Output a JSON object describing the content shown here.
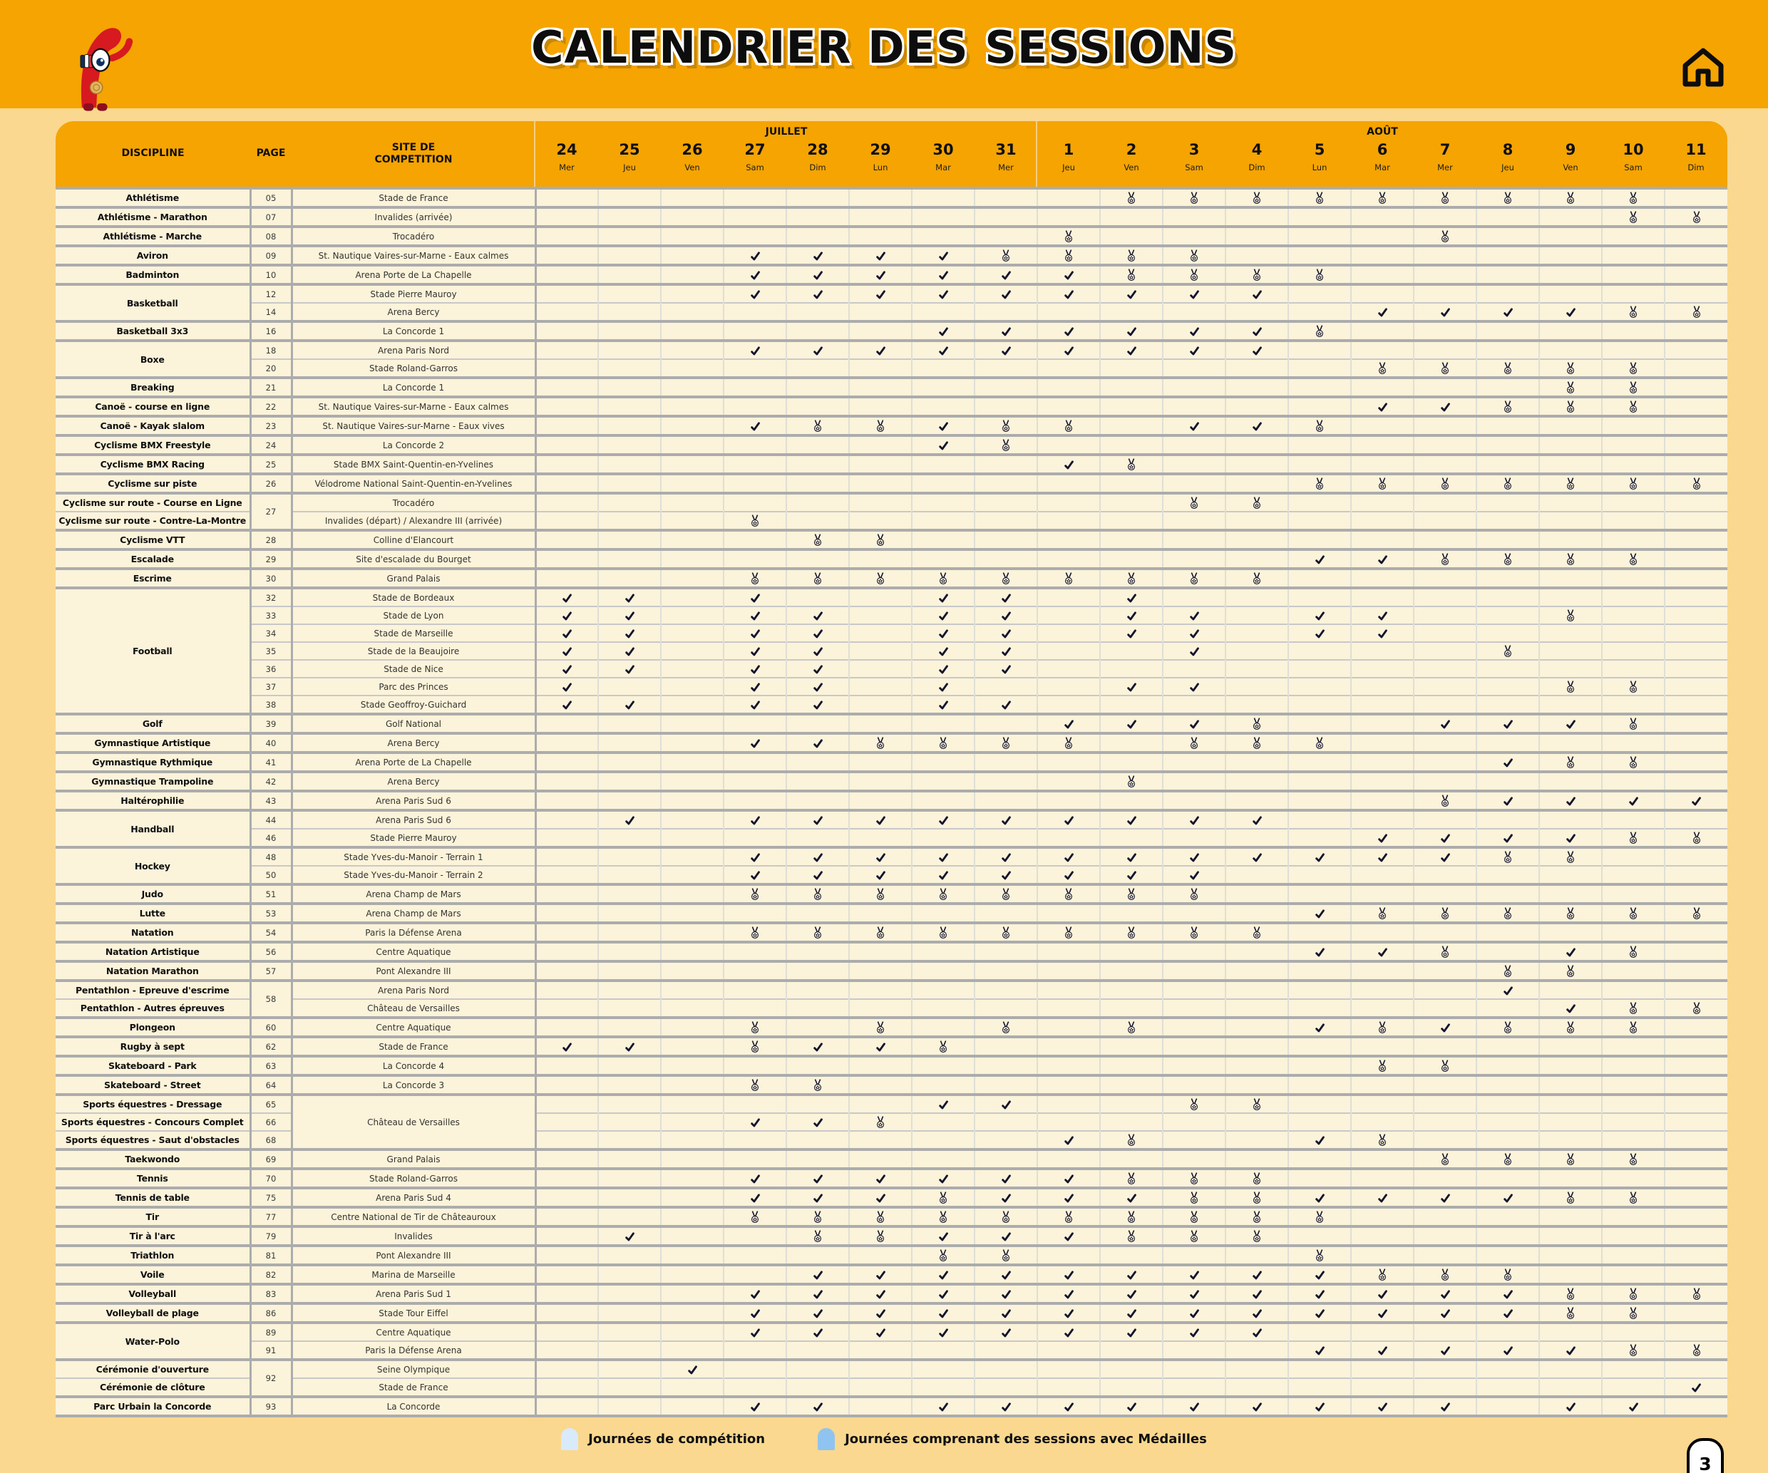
{
  "title": "CALENDRIER DES SESSIONS",
  "page_number": "3",
  "legend": {
    "competition": "Journées de compétition",
    "medal": "Journées comprenant des sessions avec Médailles"
  },
  "header": {
    "discipline": "DISCIPLINE",
    "page": "PAGE",
    "site_line1": "SITE DE",
    "site_line2": "COMPETITION",
    "months": [
      {
        "label": "JUILLET",
        "span": 8
      },
      {
        "label": "AOÛT",
        "span": 11
      }
    ]
  },
  "columns": [
    {
      "day": "24",
      "dow": "Mer"
    },
    {
      "day": "25",
      "dow": "Jeu"
    },
    {
      "day": "26",
      "dow": "Ven"
    },
    {
      "day": "27",
      "dow": "Sam"
    },
    {
      "day": "28",
      "dow": "Dim"
    },
    {
      "day": "29",
      "dow": "Lun"
    },
    {
      "day": "30",
      "dow": "Mar"
    },
    {
      "day": "31",
      "dow": "Mer"
    },
    {
      "day": "1",
      "dow": "Jeu"
    },
    {
      "day": "2",
      "dow": "Ven"
    },
    {
      "day": "3",
      "dow": "Sam"
    },
    {
      "day": "4",
      "dow": "Dim"
    },
    {
      "day": "5",
      "dow": "Lun"
    },
    {
      "day": "6",
      "dow": "Mar"
    },
    {
      "day": "7",
      "dow": "Mer"
    },
    {
      "day": "8",
      "dow": "Jeu"
    },
    {
      "day": "9",
      "dow": "Ven"
    },
    {
      "day": "10",
      "dow": "Sam"
    },
    {
      "day": "11",
      "dow": "Dim"
    }
  ],
  "mark_meaning": {
    ".": "empty",
    "C": "competition-day",
    "M": "medal-day",
    "B": "competition-check-on-medal-day"
  },
  "rows": [
    {
      "sep": "G",
      "disc": {
        "t": "Athlétisme",
        "s": 1
      },
      "page": {
        "t": "05",
        "s": 1
      },
      "site": {
        "t": "Stade de France",
        "s": 1
      },
      "marks": ".........MMMMMMMMM."
    },
    {
      "sep": "G",
      "disc": {
        "t": "Athlétisme - Marathon",
        "s": 1
      },
      "page": {
        "t": "07",
        "s": 1
      },
      "site": {
        "t": "Invalides (arrivée)",
        "s": 1
      },
      "marks": ".................MM"
    },
    {
      "sep": "G",
      "disc": {
        "t": "Athlétisme - Marche",
        "s": 1
      },
      "page": {
        "t": "08",
        "s": 1
      },
      "site": {
        "t": "Trocadéro",
        "s": 1
      },
      "marks": "........M.....M...."
    },
    {
      "sep": "G",
      "disc": {
        "t": "Aviron",
        "s": 1
      },
      "page": {
        "t": "09",
        "s": 1
      },
      "site": {
        "t": "St. Nautique Vaires-sur-Marne - Eaux calmes",
        "s": 1
      },
      "marks": "...CCCCMMMM........"
    },
    {
      "sep": "G",
      "disc": {
        "t": "Badminton",
        "s": 1
      },
      "page": {
        "t": "10",
        "s": 1
      },
      "site": {
        "t": "Arena Porte de La Chapelle",
        "s": 1
      },
      "marks": "...CCCCCCMMMM......"
    },
    {
      "sep": "G",
      "disc": {
        "t": "Basketball",
        "s": 2
      },
      "page": {
        "t": "12",
        "s": 1
      },
      "site": {
        "t": "Stade Pierre Mauroy",
        "s": 1
      },
      "marks": "...CCCCCCCCC......."
    },
    {
      "sep": "S",
      "page": {
        "t": "14",
        "s": 1
      },
      "site": {
        "t": "Arena Bercy",
        "s": 1
      },
      "marks": ".............CCCCMM"
    },
    {
      "sep": "G",
      "disc": {
        "t": "Basketball 3x3",
        "s": 1
      },
      "page": {
        "t": "16",
        "s": 1
      },
      "site": {
        "t": "La Concorde 1",
        "s": 1
      },
      "marks": "......CCCCCCM......"
    },
    {
      "sep": "G",
      "disc": {
        "t": "Boxe",
        "s": 2
      },
      "page": {
        "t": "18",
        "s": 1
      },
      "site": {
        "t": "Arena Paris Nord",
        "s": 1
      },
      "marks": "...CCCCCCCCC......."
    },
    {
      "sep": "S",
      "page": {
        "t": "20",
        "s": 1
      },
      "site": {
        "t": "Stade Roland-Garros",
        "s": 1
      },
      "marks": ".............MMMMM."
    },
    {
      "sep": "G",
      "disc": {
        "t": "Breaking",
        "s": 1
      },
      "page": {
        "t": "21",
        "s": 1
      },
      "site": {
        "t": "La Concorde 1",
        "s": 1
      },
      "marks": "................MM."
    },
    {
      "sep": "G",
      "disc": {
        "t": "Canoë - course en ligne",
        "s": 1
      },
      "page": {
        "t": "22",
        "s": 1
      },
      "site": {
        "t": "St. Nautique Vaires-sur-Marne - Eaux calmes",
        "s": 1
      },
      "marks": ".............CCMMM."
    },
    {
      "sep": "G",
      "disc": {
        "t": "Canoë - Kayak slalom",
        "s": 1
      },
      "page": {
        "t": "23",
        "s": 1
      },
      "site": {
        "t": "St. Nautique Vaires-sur-Marne - Eaux vives",
        "s": 1
      },
      "marks": "...CMMCMM.CCM......"
    },
    {
      "sep": "G",
      "disc": {
        "t": "Cyclisme BMX Freestyle",
        "s": 1
      },
      "page": {
        "t": "24",
        "s": 1
      },
      "site": {
        "t": "La Concorde 2",
        "s": 1
      },
      "marks": "......CM..........."
    },
    {
      "sep": "G",
      "disc": {
        "t": "Cyclisme BMX Racing",
        "s": 1
      },
      "page": {
        "t": "25",
        "s": 1
      },
      "site": {
        "t": "Stade BMX Saint-Quentin-en-Yvelines",
        "s": 1
      },
      "marks": "........CM........."
    },
    {
      "sep": "G",
      "disc": {
        "t": "Cyclisme sur piste",
        "s": 1
      },
      "page": {
        "t": "26",
        "s": 1
      },
      "site": {
        "t": "Vélodrome National Saint-Quentin-en-Yvelines",
        "s": 1
      },
      "marks": "............MMMMMMM"
    },
    {
      "sep": "G",
      "disc": {
        "t": "Cyclisme sur route - Course en Ligne",
        "s": 1
      },
      "page": {
        "t": "27",
        "s": 2
      },
      "site": {
        "t": "Trocadéro",
        "s": 1
      },
      "marks": "..........MM......."
    },
    {
      "sep": "S",
      "disc": {
        "t": "Cyclisme sur route - Contre-La-Montre",
        "s": 1
      },
      "site": {
        "t": "Invalides (départ) / Alexandre III (arrivée)",
        "s": 1
      },
      "marks": "...M..............."
    },
    {
      "sep": "G",
      "disc": {
        "t": "Cyclisme VTT",
        "s": 1
      },
      "page": {
        "t": "28",
        "s": 1
      },
      "site": {
        "t": "Colline d'Elancourt",
        "s": 1
      },
      "marks": "....MM............."
    },
    {
      "sep": "G",
      "disc": {
        "t": "Escalade",
        "s": 1
      },
      "page": {
        "t": "29",
        "s": 1
      },
      "site": {
        "t": "Site d'escalade du Bourget",
        "s": 1
      },
      "marks": "............CCMMMM."
    },
    {
      "sep": "G",
      "disc": {
        "t": "Escrime",
        "s": 1
      },
      "page": {
        "t": "30",
        "s": 1
      },
      "site": {
        "t": "Grand Palais",
        "s": 1
      },
      "marks": "...MMMMMMMMM......."
    },
    {
      "sep": "G",
      "disc": {
        "t": "Football",
        "s": 7
      },
      "page": {
        "t": "32",
        "s": 1
      },
      "site": {
        "t": "Stade de Bordeaux",
        "s": 1
      },
      "marks": "CC.C..CC.C........."
    },
    {
      "sep": "S",
      "page": {
        "t": "33",
        "s": 1
      },
      "site": {
        "t": "Stade de Lyon",
        "s": 1
      },
      "marks": "CC.CC.CC.CC.CC..M.."
    },
    {
      "sep": "S",
      "page": {
        "t": "34",
        "s": 1
      },
      "site": {
        "t": "Stade de Marseille",
        "s": 1
      },
      "marks": "CC.CC.CC.CC.CC....."
    },
    {
      "sep": "S",
      "page": {
        "t": "35",
        "s": 1
      },
      "site": {
        "t": "Stade de la Beaujoire",
        "s": 1
      },
      "marks": "CC.CC.CC..C....M..."
    },
    {
      "sep": "S",
      "page": {
        "t": "36",
        "s": 1
      },
      "site": {
        "t": "Stade de Nice",
        "s": 1
      },
      "marks": "CC.CC.CC..........."
    },
    {
      "sep": "S",
      "page": {
        "t": "37",
        "s": 1
      },
      "site": {
        "t": "Parc des Princes",
        "s": 1
      },
      "marks": "C..CC.C..CC.....MM."
    },
    {
      "sep": "S",
      "page": {
        "t": "38",
        "s": 1
      },
      "site": {
        "t": "Stade Geoffroy-Guichard",
        "s": 1
      },
      "marks": "CC.CC.CC..........."
    },
    {
      "sep": "G",
      "disc": {
        "t": "Golf",
        "s": 1
      },
      "page": {
        "t": "39",
        "s": 1
      },
      "site": {
        "t": "Golf National",
        "s": 1
      },
      "marks": "........CCCM..CCCM."
    },
    {
      "sep": "G",
      "disc": {
        "t": "Gymnastique Artistique",
        "s": 1
      },
      "page": {
        "t": "40",
        "s": 1
      },
      "site": {
        "t": "Arena Bercy",
        "s": 1
      },
      "marks": "...CCMMMM.MMM......"
    },
    {
      "sep": "G",
      "disc": {
        "t": "Gymnastique Rythmique",
        "s": 1
      },
      "page": {
        "t": "41",
        "s": 1
      },
      "site": {
        "t": "Arena Porte de La Chapelle",
        "s": 1
      },
      "marks": "...............CMM."
    },
    {
      "sep": "G",
      "disc": {
        "t": "Gymnastique Trampoline",
        "s": 1
      },
      "page": {
        "t": "42",
        "s": 1
      },
      "site": {
        "t": "Arena Bercy",
        "s": 1
      },
      "marks": ".........M........."
    },
    {
      "sep": "G",
      "disc": {
        "t": "Haltérophilie",
        "s": 1
      },
      "page": {
        "t": "43",
        "s": 1
      },
      "site": {
        "t": "Arena Paris Sud 6",
        "s": 1
      },
      "marks": "..............MBBBB"
    },
    {
      "sep": "G",
      "disc": {
        "t": "Handball",
        "s": 2
      },
      "page": {
        "t": "44",
        "s": 1
      },
      "site": {
        "t": "Arena Paris Sud 6",
        "s": 1
      },
      "marks": ".C.CCCCCCCCC......."
    },
    {
      "sep": "S",
      "page": {
        "t": "46",
        "s": 1
      },
      "site": {
        "t": "Stade Pierre Mauroy",
        "s": 1
      },
      "marks": ".............CCCCMM"
    },
    {
      "sep": "G",
      "disc": {
        "t": "Hockey",
        "s": 2
      },
      "page": {
        "t": "48",
        "s": 1
      },
      "site": {
        "t": "Stade Yves-du-Manoir - Terrain 1",
        "s": 1
      },
      "marks": "...CCCCCCCCCCCCMM.."
    },
    {
      "sep": "S",
      "page": {
        "t": "50",
        "s": 1
      },
      "site": {
        "t": "Stade Yves-du-Manoir - Terrain 2",
        "s": 1
      },
      "marks": "...CCCCCCCC........"
    },
    {
      "sep": "G",
      "disc": {
        "t": "Judo",
        "s": 1
      },
      "page": {
        "t": "51",
        "s": 1
      },
      "site": {
        "t": "Arena Champ de Mars",
        "s": 1
      },
      "marks": "...MMMMMMMM........"
    },
    {
      "sep": "G",
      "disc": {
        "t": "Lutte",
        "s": 1
      },
      "page": {
        "t": "53",
        "s": 1
      },
      "site": {
        "t": "Arena Champ de Mars",
        "s": 1
      },
      "marks": "............CMMMMMM"
    },
    {
      "sep": "G",
      "disc": {
        "t": "Natation",
        "s": 1
      },
      "page": {
        "t": "54",
        "s": 1
      },
      "site": {
        "t": "Paris la Défense Arena",
        "s": 1
      },
      "marks": "...MMMMMMMMM......."
    },
    {
      "sep": "G",
      "disc": {
        "t": "Natation Artistique",
        "s": 1
      },
      "page": {
        "t": "56",
        "s": 1
      },
      "site": {
        "t": "Centre Aquatique",
        "s": 1
      },
      "marks": "............CCM.CM."
    },
    {
      "sep": "G",
      "disc": {
        "t": "Natation Marathon",
        "s": 1
      },
      "page": {
        "t": "57",
        "s": 1
      },
      "site": {
        "t": "Pont Alexandre III",
        "s": 1
      },
      "marks": "...............MM.."
    },
    {
      "sep": "G",
      "disc": {
        "t": "Pentathlon - Epreuve d'escrime",
        "s": 1
      },
      "page": {
        "t": "58",
        "s": 2
      },
      "site": {
        "t": "Arena Paris Nord",
        "s": 1
      },
      "marks": "...............C..."
    },
    {
      "sep": "S",
      "disc": {
        "t": "Pentathlon - Autres épreuves",
        "s": 1
      },
      "site": {
        "t": "Château de Versailles",
        "s": 1
      },
      "marks": "................CMM"
    },
    {
      "sep": "G",
      "disc": {
        "t": "Plongeon",
        "s": 1
      },
      "page": {
        "t": "60",
        "s": 1
      },
      "site": {
        "t": "Centre Aquatique",
        "s": 1
      },
      "marks": "...M.M.M.M..CMCMMM."
    },
    {
      "sep": "G",
      "disc": {
        "t": "Rugby à sept",
        "s": 1
      },
      "page": {
        "t": "62",
        "s": 1
      },
      "site": {
        "t": "Stade de France",
        "s": 1
      },
      "marks": "CC.MCCM............"
    },
    {
      "sep": "G",
      "disc": {
        "t": "Skateboard - Park",
        "s": 1
      },
      "page": {
        "t": "63",
        "s": 1
      },
      "site": {
        "t": "La Concorde 4",
        "s": 1
      },
      "marks": ".............MM...."
    },
    {
      "sep": "G",
      "disc": {
        "t": "Skateboard - Street",
        "s": 1
      },
      "page": {
        "t": "64",
        "s": 1
      },
      "site": {
        "t": "La Concorde 3",
        "s": 1
      },
      "marks": "...MM.............."
    },
    {
      "sep": "G",
      "disc": {
        "t": "Sports équestres - Dressage",
        "s": 1
      },
      "page": {
        "t": "65",
        "s": 1
      },
      "site": {
        "t": "Château de Versailles",
        "s": 3
      },
      "marks": "......CC..MM......."
    },
    {
      "sep": "S",
      "disc": {
        "t": "Sports équestres - Concours Complet",
        "s": 1
      },
      "page": {
        "t": "66",
        "s": 1
      },
      "marks": "...CCM............."
    },
    {
      "sep": "S",
      "disc": {
        "t": "Sports équestres - Saut d'obstacles",
        "s": 1
      },
      "page": {
        "t": "68",
        "s": 1
      },
      "marks": "........CM..CM....."
    },
    {
      "sep": "G",
      "disc": {
        "t": "Taekwondo",
        "s": 1
      },
      "page": {
        "t": "69",
        "s": 1
      },
      "site": {
        "t": "Grand Palais",
        "s": 1
      },
      "marks": "..............MMMM."
    },
    {
      "sep": "G",
      "disc": {
        "t": "Tennis",
        "s": 1
      },
      "page": {
        "t": "70",
        "s": 1
      },
      "site": {
        "t": "Stade Roland-Garros",
        "s": 1
      },
      "marks": "...CCCCCCMMM......."
    },
    {
      "sep": "G",
      "disc": {
        "t": "Tennis de table",
        "s": 1
      },
      "page": {
        "t": "75",
        "s": 1
      },
      "site": {
        "t": "Arena Paris Sud 4",
        "s": 1
      },
      "marks": "...CCCMCCCMMCCCCMM."
    },
    {
      "sep": "G",
      "disc": {
        "t": "Tir",
        "s": 1
      },
      "page": {
        "t": "77",
        "s": 1
      },
      "site": {
        "t": "Centre National de Tir de Châteauroux",
        "s": 1
      },
      "marks": "...MMMMMMMMMM......"
    },
    {
      "sep": "G",
      "disc": {
        "t": "Tir à l'arc",
        "s": 1
      },
      "page": {
        "t": "79",
        "s": 1
      },
      "site": {
        "t": "Invalides",
        "s": 1
      },
      "marks": ".C..MMCCCMMM......."
    },
    {
      "sep": "G",
      "disc": {
        "t": "Triathlon",
        "s": 1
      },
      "page": {
        "t": "81",
        "s": 1
      },
      "site": {
        "t": "Pont Alexandre III",
        "s": 1
      },
      "marks": "......MM....M......"
    },
    {
      "sep": "G",
      "disc": {
        "t": "Voile",
        "s": 1
      },
      "page": {
        "t": "82",
        "s": 1
      },
      "site": {
        "t": "Marina de Marseille",
        "s": 1
      },
      "marks": "....CCCCCCCCCMMM..."
    },
    {
      "sep": "G",
      "disc": {
        "t": "Volleyball",
        "s": 1
      },
      "page": {
        "t": "83",
        "s": 1
      },
      "site": {
        "t": "Arena Paris Sud 1",
        "s": 1
      },
      "marks": "...CCCCCCCCCCCCCMMM"
    },
    {
      "sep": "G",
      "disc": {
        "t": "Volleyball de plage",
        "s": 1
      },
      "page": {
        "t": "86",
        "s": 1
      },
      "site": {
        "t": "Stade Tour Eiffel",
        "s": 1
      },
      "marks": "...CCCCCCCCCCCCCMM."
    },
    {
      "sep": "G",
      "disc": {
        "t": "Water-Polo",
        "s": 2
      },
      "page": {
        "t": "89",
        "s": 1
      },
      "site": {
        "t": "Centre Aquatique",
        "s": 1
      },
      "marks": "...CCCCCCCCC......."
    },
    {
      "sep": "S",
      "page": {
        "t": "91",
        "s": 1
      },
      "site": {
        "t": "Paris la Défense Arena",
        "s": 1
      },
      "marks": "............CCCCCMM"
    },
    {
      "sep": "G",
      "disc": {
        "t": "Cérémonie d'ouverture",
        "s": 1
      },
      "page": {
        "t": "92",
        "s": 2
      },
      "site": {
        "t": "Seine Olympique",
        "s": 1
      },
      "marks": "..C................"
    },
    {
      "sep": "S",
      "disc": {
        "t": "Cérémonie de clôture",
        "s": 1
      },
      "site": {
        "t": "Stade de France",
        "s": 1
      },
      "marks": "..................C"
    },
    {
      "sep": "G",
      "disc": {
        "t": "Parc Urbain la Concorde",
        "s": 1
      },
      "page": {
        "t": "93",
        "s": 1
      },
      "site": {
        "t": "La Concorde",
        "s": 1
      },
      "marks": "...CC.CCCCCCCCC.CC."
    }
  ],
  "colors": {
    "accent_orange": "#F5A402",
    "sand_background": "#FAD88F",
    "cell_cream": "#FBF3DA",
    "competition_blue": "#D9EAFB",
    "medal_blue": "#8FC4F1",
    "mascot_red": "#D71920",
    "ink": "#14142E"
  },
  "icons": [
    "mascot",
    "home-icon",
    "medal-icon",
    "check-icon"
  ]
}
